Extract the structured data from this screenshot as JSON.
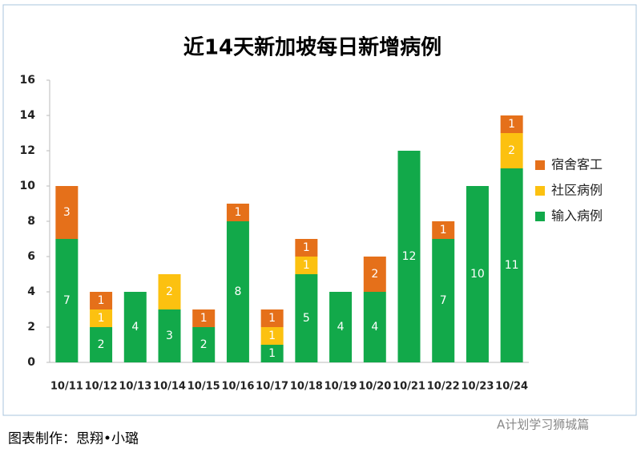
{
  "chart_data": {
    "type": "stacked-bar",
    "title": "近14天新加坡每日新增病例",
    "categories": [
      "10/11",
      "10/12",
      "10/13",
      "10/14",
      "10/15",
      "10/16",
      "10/17",
      "10/18",
      "10/19",
      "10/20",
      "10/21",
      "10/22",
      "10/23",
      "10/24"
    ],
    "series": [
      {
        "name": "输入病例",
        "color": "#12a94a",
        "values": [
          7,
          2,
          4,
          3,
          2,
          8,
          1,
          5,
          4,
          4,
          12,
          7,
          10,
          11
        ]
      },
      {
        "name": "社区病例",
        "color": "#fcc110",
        "values": [
          0,
          1,
          0,
          2,
          0,
          0,
          1,
          1,
          0,
          0,
          0,
          0,
          0,
          2
        ]
      },
      {
        "name": "宿舍客工",
        "color": "#e5701a",
        "values": [
          3,
          1,
          0,
          0,
          1,
          1,
          1,
          1,
          0,
          2,
          0,
          1,
          0,
          1
        ]
      }
    ],
    "ylim": [
      0,
      16
    ],
    "yticks": [
      0,
      2,
      4,
      6,
      8,
      10,
      12,
      14,
      16
    ],
    "legend": "right"
  },
  "footer": {
    "credit": "图表制作：思翔•小璐",
    "watermark": "A计划学习狮城篇"
  }
}
